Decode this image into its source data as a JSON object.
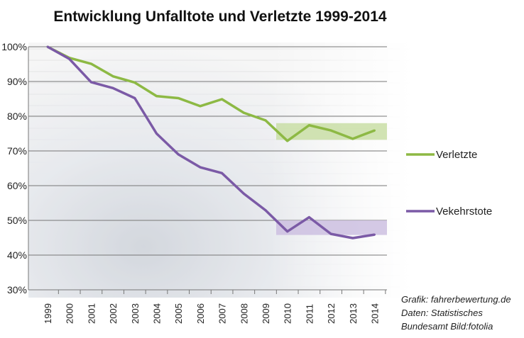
{
  "chart_data": {
    "type": "line",
    "title": "Entwicklung Unfalltote und Verletzte 1999-2014",
    "xlabel": "",
    "ylabel": "",
    "x": [
      "1999",
      "2000",
      "2001",
      "2002",
      "2003",
      "2004",
      "2005",
      "2006",
      "2007",
      "2008",
      "2009",
      "2010",
      "2011",
      "2012",
      "2013",
      "2014"
    ],
    "ylim": [
      30,
      100
    ],
    "yticks": [
      "30%",
      "40%",
      "50%",
      "60%",
      "70%",
      "80%",
      "90%",
      "100%"
    ],
    "ytick_values": [
      30,
      40,
      50,
      60,
      70,
      80,
      90,
      100
    ],
    "grid": true,
    "legend_placement": "right",
    "series": [
      {
        "name": "Verletzte",
        "color": "#8db944",
        "values": [
          100,
          96.8,
          95.1,
          91.5,
          89.7,
          85.8,
          85.2,
          82.9,
          84.9,
          81,
          78.8,
          72.9,
          77.4,
          75.9,
          73.5,
          75.9
        ],
        "band": [
          73.2,
          78
        ]
      },
      {
        "name": "Vekehrstote",
        "color": "#7b5aa6",
        "values": [
          100,
          96.5,
          89.8,
          88.1,
          85.2,
          75,
          69,
          65.3,
          63.6,
          57.7,
          52.9,
          46.8,
          50.9,
          46.1,
          44.9,
          45.9
        ],
        "band": [
          45.8,
          50
        ]
      }
    ],
    "band_range": [
      "2009",
      "2014"
    ],
    "band_colors": [
      "#c9dea6",
      "#cdbfe0"
    ],
    "annotations": [
      "Grafik: fahrerbewertung.de",
      "Daten: Statistisches",
      "Bundesamt Bild:fotolia"
    ]
  }
}
